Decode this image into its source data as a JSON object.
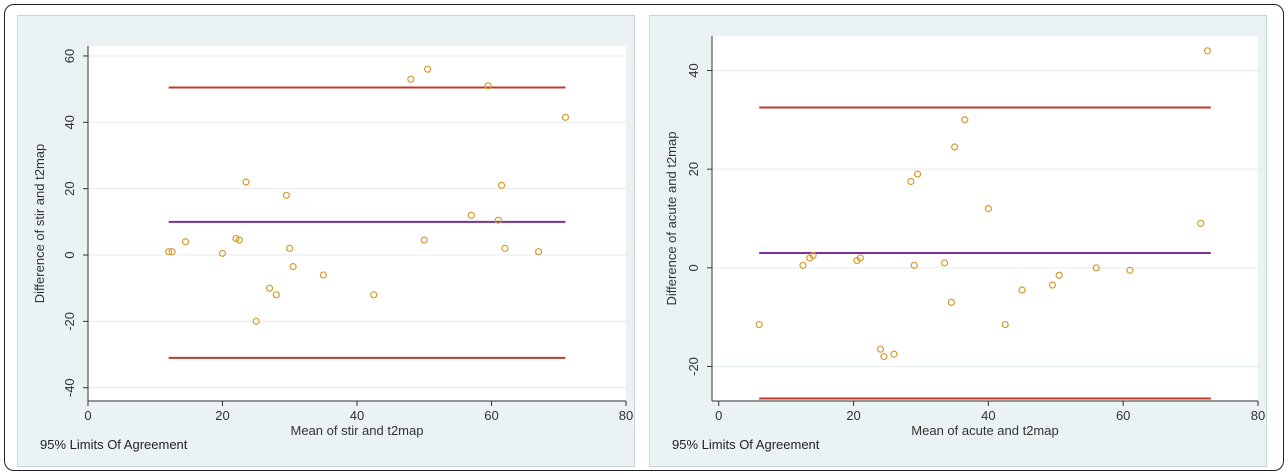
{
  "chart_data": [
    {
      "type": "scatter",
      "xlabel": "Mean of stir and t2map",
      "ylabel": "Difference of stir and t2map",
      "xlim": [
        0,
        80
      ],
      "ylim": [
        -44,
        63
      ],
      "xticks": [
        0,
        20,
        40,
        60,
        80
      ],
      "yticks": [
        -40,
        -20,
        0,
        20,
        40,
        60
      ],
      "caption": "95% Limits Of Agreement",
      "grid": true,
      "reference_lines": [
        {
          "role": "upper limit",
          "y": 50.5,
          "x_range": [
            12,
            71
          ],
          "color": "#c0392b"
        },
        {
          "role": "mean difference",
          "y": 10,
          "x_range": [
            12,
            71
          ],
          "color": "#7b2f9e"
        },
        {
          "role": "lower limit",
          "y": -31,
          "x_range": [
            12,
            71
          ],
          "color": "#c0392b"
        }
      ],
      "points": [
        [
          12,
          1
        ],
        [
          12.5,
          1
        ],
        [
          14.5,
          4
        ],
        [
          20,
          0.5
        ],
        [
          22,
          5
        ],
        [
          22.5,
          4.5
        ],
        [
          23.5,
          22
        ],
        [
          25,
          -20
        ],
        [
          27,
          -10
        ],
        [
          28,
          -12
        ],
        [
          29.5,
          18
        ],
        [
          30,
          2
        ],
        [
          30.5,
          -3.5
        ],
        [
          35,
          -6
        ],
        [
          42.5,
          -12
        ],
        [
          48,
          53
        ],
        [
          50,
          4.5
        ],
        [
          50.5,
          56
        ],
        [
          57,
          12
        ],
        [
          59.5,
          51
        ],
        [
          61,
          10.5
        ],
        [
          61.5,
          21
        ],
        [
          62,
          2
        ],
        [
          67,
          1
        ],
        [
          71,
          41.5
        ]
      ]
    },
    {
      "type": "scatter",
      "xlabel": "Mean of acute and t2map",
      "ylabel": "Difference of acute and t2map",
      "xlim": [
        -1,
        80
      ],
      "ylim": [
        -27,
        47
      ],
      "xticks": [
        0,
        20,
        40,
        60,
        80
      ],
      "yticks": [
        -20,
        0,
        20,
        40
      ],
      "caption": "95% Limits Of Agreement",
      "grid": true,
      "reference_lines": [
        {
          "role": "upper limit",
          "y": 32.5,
          "x_range": [
            6,
            73
          ],
          "color": "#c0392b"
        },
        {
          "role": "mean difference",
          "y": 3,
          "x_range": [
            6,
            73
          ],
          "color": "#7b2f9e"
        },
        {
          "role": "lower limit",
          "y": -26.5,
          "x_range": [
            6,
            73
          ],
          "color": "#c0392b"
        }
      ],
      "points": [
        [
          6,
          -11.5
        ],
        [
          12.5,
          0.5
        ],
        [
          13.5,
          2
        ],
        [
          14,
          2.5
        ],
        [
          20.5,
          1.5
        ],
        [
          21,
          2
        ],
        [
          24,
          -16.5
        ],
        [
          24.5,
          -18
        ],
        [
          26,
          -17.5
        ],
        [
          28.5,
          17.5
        ],
        [
          29.5,
          19
        ],
        [
          29,
          0.5
        ],
        [
          33.5,
          1
        ],
        [
          34.5,
          -7
        ],
        [
          35,
          24.5
        ],
        [
          36.5,
          30
        ],
        [
          40,
          12
        ],
        [
          42.5,
          -11.5
        ],
        [
          45,
          -4.5
        ],
        [
          49.5,
          -3.5
        ],
        [
          50.5,
          -1.5
        ],
        [
          56,
          0
        ],
        [
          61,
          -0.5
        ],
        [
          71.5,
          9
        ],
        [
          72.5,
          44
        ]
      ]
    }
  ]
}
